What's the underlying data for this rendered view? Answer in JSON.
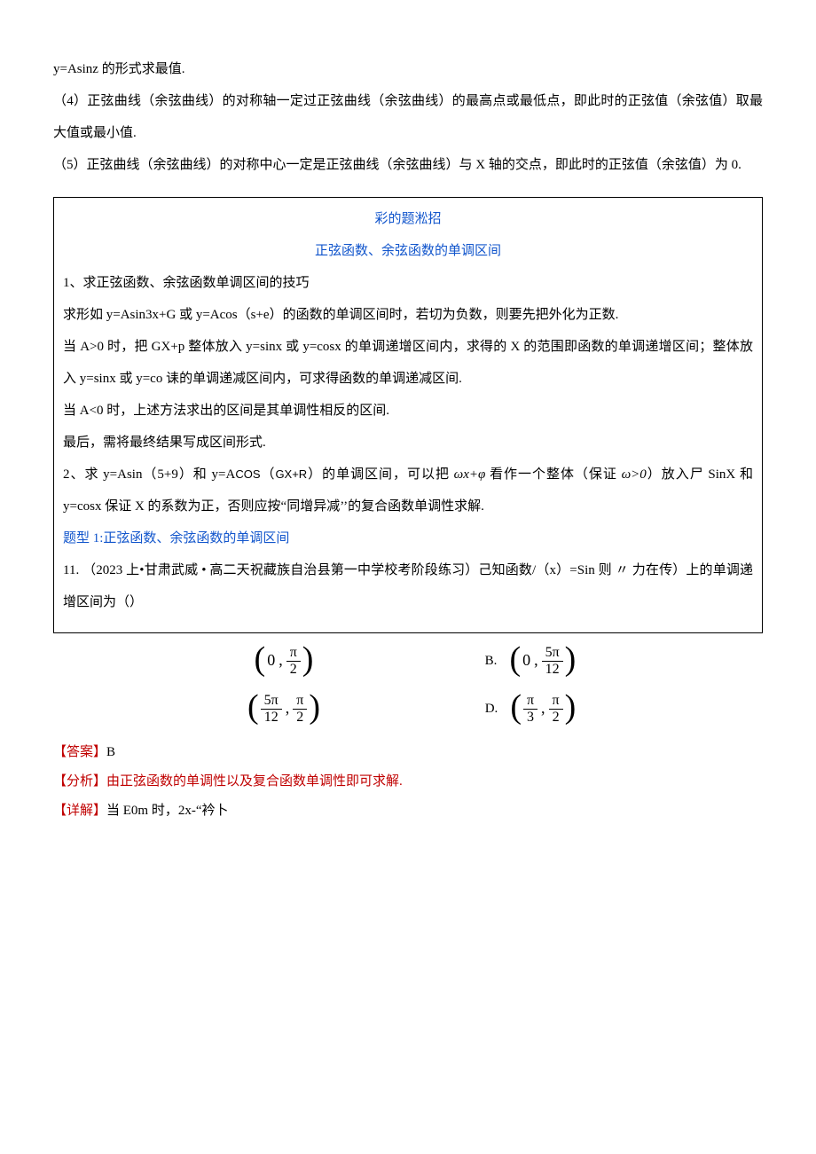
{
  "intro": {
    "p0": "y=Asinz 的形式求最值.",
    "p4": "（4）正弦曲线（余弦曲线）的对称轴一定过正弦曲线（余弦曲线）的最高点或最低点，即此时的正弦值（余弦值）取最大值或最小值.",
    "p5": "（5）正弦曲线（余弦曲线）的对称中心一定是正弦曲线（余弦曲线）与 X 轴的交点，即此时的正弦值（余弦值）为 0."
  },
  "box": {
    "title1": "彩的题淞招",
    "title2": "正弦函数、余弦函数的单调区间",
    "p1": "1、求正弦函数、余弦函数单调区间的技巧",
    "p2": "求形如 y=Asin3x+G 或 y=Acos（s+e）的函数的单调区间时，若切为负数，则要先把外化为正数.",
    "p3": "当 A>0 时，把 GX+p 整体放入 y=sinx 或 y=cosx 的单调递增区间内，求得的 X 的范围即函数的单调递增区间；整体放入 y=sinx 或 y=co 诔的单调递减区间内，可求得函数的单调递减区间.",
    "p4": "当 A<0 时，上述方法求出的区间是其单调性相反的区间.",
    "p5": "最后，需将最终结果写成区间形式.",
    "p6_a": "2、求 y=Asin（5+9）和 y=A",
    "p6_cos": "COS",
    "p6_b": "（",
    "p6_gxr": "GX+R",
    "p6_c": "）的单调区间，可以把 ",
    "p6_it": "ωx+φ",
    "p6_d": " 看作一个整体（保证 ",
    "p6_it2": "ω>0",
    "p6_e": "）放入尸 SinX 和 y=cosx 保证 X 的系数为正，否则应按“同增异减’’的复合函数单调性求解.",
    "topic": "题型 1:正弦函数、余弦函数的单调区间",
    "q11_a": "11.  （2023 上•甘肃武威 • 高二天祝藏族自治县第一中学校考阶段练习）己知函数/（x）=Sin 则 〃 力在传）上的单调递增区间为（）"
  },
  "options": {
    "a": {
      "first": "0",
      "num": "π",
      "den": "2"
    },
    "b": {
      "label": "B.",
      "first": "0",
      "num": "5π",
      "den": "12"
    },
    "c": {
      "num1": "5π",
      "den1": "12",
      "num2": "π",
      "den2": "2"
    },
    "d": {
      "label": "D.",
      "num1": "π",
      "den1": "3",
      "num2": "π",
      "den2": "2"
    }
  },
  "answer": {
    "ans_label": "【答案】",
    "ans_val": "B",
    "analysis_label": "【分析】",
    "analysis_text": "由正弦函数的单调性以及复合函数单调性即可求解.",
    "detail_label": "【详解】",
    "detail_text": "当 E0m 时，2x-“衿卜"
  }
}
